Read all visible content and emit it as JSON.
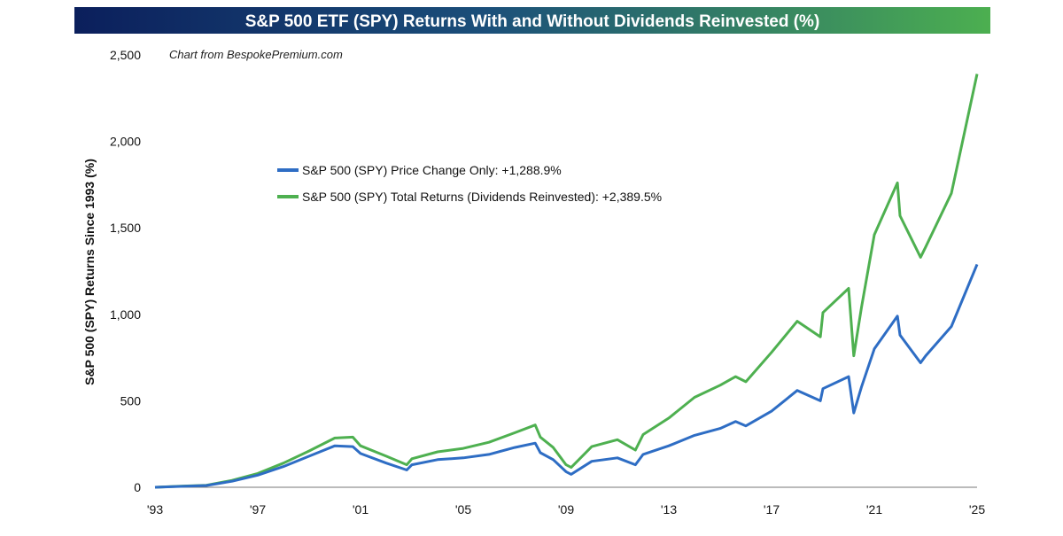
{
  "chart_data": {
    "type": "line",
    "title": "S&P 500 ETF (SPY) Returns With and Without Dividends Reinvested (%)",
    "subtitle": "Chart from BespokePremium.com",
    "xlabel": "",
    "ylabel": "S&P 500 (SPY) Returns Since 1993 (%)",
    "xlim": [
      1993,
      2025
    ],
    "ylim": [
      0,
      2500
    ],
    "yticks": [
      0,
      500,
      1000,
      1500,
      2000,
      2500
    ],
    "ytick_labels": [
      "0",
      "500",
      "1,000",
      "1,500",
      "2,000",
      "2,500"
    ],
    "xticks": [
      1993,
      1997,
      2001,
      2005,
      2009,
      2013,
      2017,
      2021,
      2025
    ],
    "xtick_labels": [
      "'93",
      "'97",
      "'01",
      "'05",
      "'09",
      "'13",
      "'17",
      "'21",
      "'25"
    ],
    "grid": false,
    "legend_position": "upper-left",
    "colors": {
      "price": "#2E6DC4",
      "total": "#4EB050",
      "title_start": "#0B1F5C",
      "title_end": "#4CAF50"
    },
    "series": [
      {
        "name": "S&P 500 (SPY) Price Change Only: +1,288.9%",
        "x": [
          1993,
          1994,
          1995,
          1996,
          1997,
          1998,
          1999,
          2000,
          2000.7,
          2001,
          2002,
          2002.8,
          2003,
          2004,
          2005,
          2006,
          2007,
          2007.8,
          2008,
          2008.5,
          2009.0,
          2009.2,
          2010,
          2011,
          2011.7,
          2012,
          2013,
          2014,
          2015,
          2015.6,
          2016,
          2017,
          2018,
          2018.9,
          2019,
          2020.0,
          2020.2,
          2020.5,
          2021,
          2021.9,
          2022,
          2022.8,
          2023,
          2024,
          2025
        ],
        "values": [
          0,
          5,
          10,
          35,
          70,
          120,
          180,
          240,
          235,
          195,
          140,
          100,
          130,
          160,
          170,
          190,
          230,
          255,
          200,
          160,
          90,
          75,
          150,
          170,
          130,
          190,
          240,
          300,
          340,
          380,
          355,
          440,
          560,
          500,
          570,
          640,
          430,
          580,
          800,
          990,
          880,
          720,
          760,
          930,
          1289
        ]
      },
      {
        "name": "S&P 500 (SPY) Total Returns (Dividends Reinvested): +2,389.5%",
        "x": [
          1993,
          1994,
          1995,
          1996,
          1997,
          1998,
          1999,
          2000,
          2000.7,
          2001,
          2002,
          2002.8,
          2003,
          2004,
          2005,
          2006,
          2007,
          2007.8,
          2008,
          2008.5,
          2009.0,
          2009.2,
          2010,
          2011,
          2011.7,
          2012,
          2013,
          2014,
          2015,
          2015.6,
          2016,
          2017,
          2018,
          2018.9,
          2019,
          2020.0,
          2020.2,
          2020.5,
          2021,
          2021.9,
          2022,
          2022.8,
          2023,
          2024,
          2025
        ],
        "values": [
          0,
          6,
          12,
          40,
          80,
          140,
          210,
          285,
          290,
          240,
          180,
          130,
          165,
          205,
          225,
          260,
          315,
          360,
          290,
          230,
          130,
          115,
          235,
          275,
          215,
          305,
          400,
          520,
          590,
          640,
          610,
          780,
          960,
          870,
          1010,
          1150,
          760,
          1040,
          1460,
          1760,
          1570,
          1330,
          1390,
          1700,
          2390
        ]
      }
    ]
  }
}
